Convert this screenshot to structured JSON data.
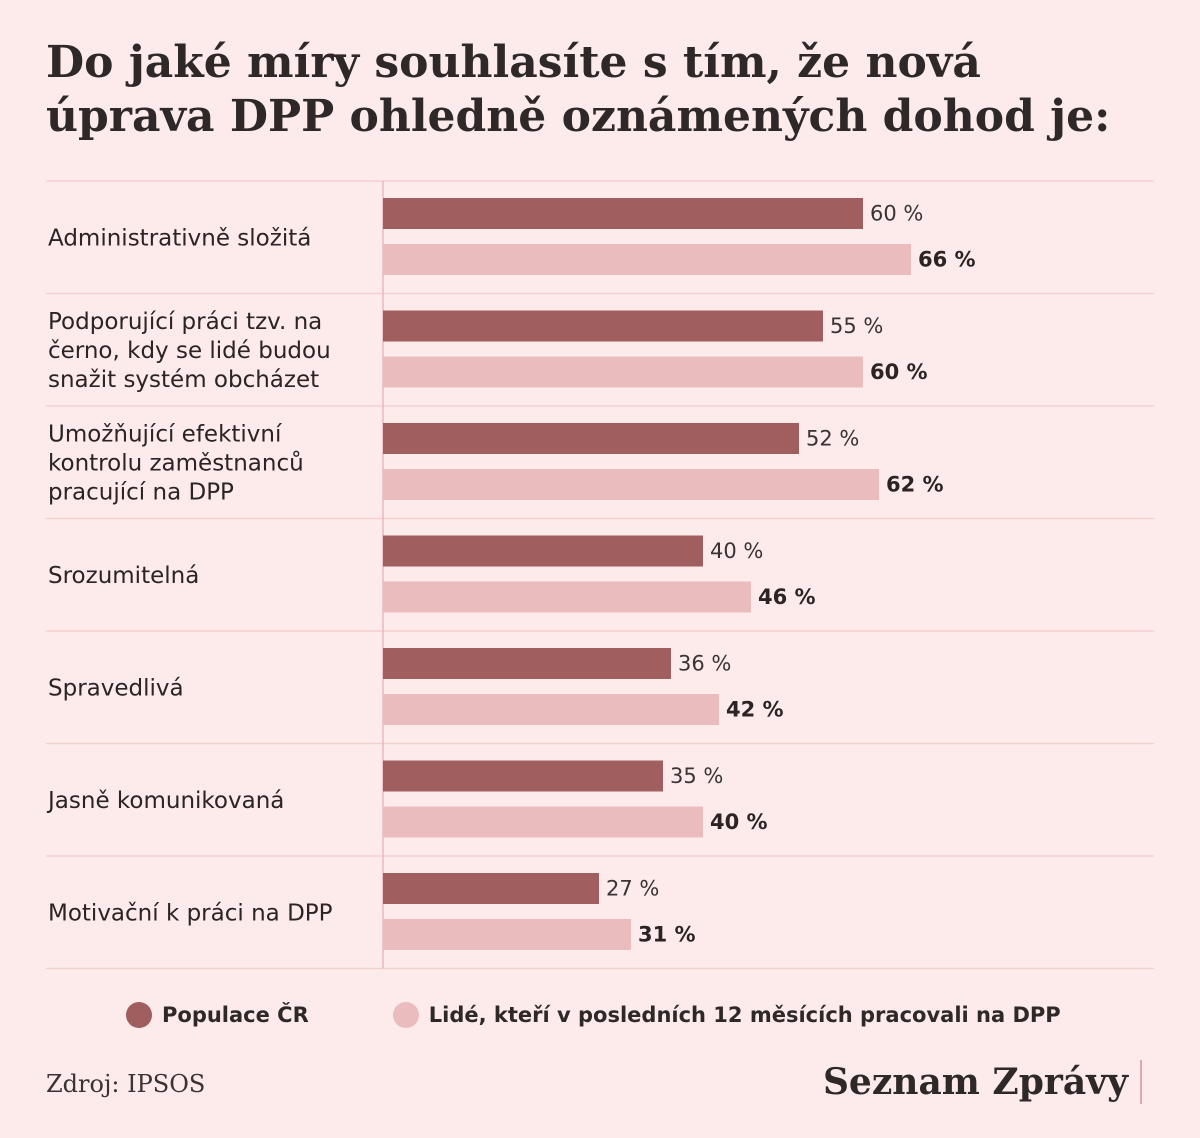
{
  "chart_data": {
    "type": "bar",
    "orientation": "horizontal",
    "title": "Do jaké míry souhlasíte s tím, že nová úprava DPP ohledně oznámených dohod je:",
    "categories": [
      "Administrativně složitá",
      "Podporující práci tzv. na černo, kdy se lidé budou snažit systém obcházet",
      "Umožňující efektivní kontrolu zaměstnanců pracující na DPP",
      "Srozumitelná",
      "Spravedlivá",
      "Jasně komunikovaná",
      "Motivační k práci na DPP"
    ],
    "category_lines": [
      [
        "Administrativně složitá"
      ],
      [
        "Podporující práci tzv. na",
        "černo, kdy se lidé budou",
        "snažit systém obcházet"
      ],
      [
        "Umožňující efektivní",
        "kontrolu zaměstnanců",
        "pracující na DPP"
      ],
      [
        "Srozumitelná"
      ],
      [
        "Spravedlivá"
      ],
      [
        "Jasně komunikovaná"
      ],
      [
        "Motivační k práci na DPP"
      ]
    ],
    "series": [
      {
        "name": "Populace ČR",
        "values": [
          60,
          55,
          52,
          40,
          36,
          35,
          27
        ],
        "labels": [
          "60 %",
          "55 %",
          "52 %",
          "40 %",
          "36 %",
          "35 %",
          "27 %"
        ],
        "color": "#a05e5f"
      },
      {
        "name": "Lidé, kteří v posledních 12 měsících pracovali na DPP",
        "values": [
          66,
          60,
          62,
          46,
          42,
          40,
          31
        ],
        "labels": [
          "66 %",
          "60 %",
          "62 %",
          "46 %",
          "42 %",
          "40 %",
          "31 %"
        ],
        "color": "#ebbcbe"
      }
    ],
    "xlim": [
      0,
      100
    ],
    "unit": "%",
    "legend": "bottom",
    "grid": false
  },
  "colors": {
    "background": "#fcebea",
    "separator": "#f3cfd0",
    "axis": "#e9b9bc"
  },
  "footer": {
    "source": "Zdroj: IPSOS",
    "brand": "Seznam Zprávy"
  }
}
